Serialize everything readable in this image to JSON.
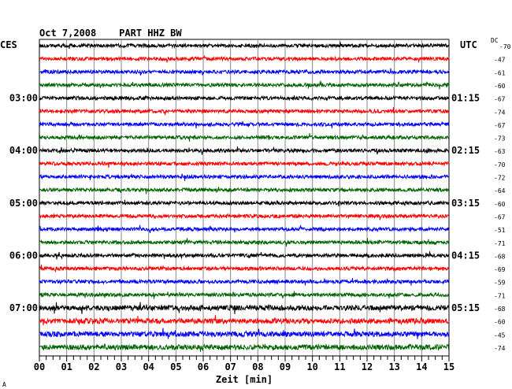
{
  "chart_data": {
    "type": "line",
    "title": "Oct 7,2008    PART HHZ BW",
    "xlabel": "Zeit [min]",
    "xlim": [
      0,
      15
    ],
    "x_ticks": [
      "00",
      "01",
      "02",
      "03",
      "04",
      "05",
      "06",
      "07",
      "08",
      "09",
      "10",
      "11",
      "12",
      "13",
      "14",
      "15"
    ],
    "left_axis_title": "CES",
    "right_axis_title": "UTC",
    "dc_label": "DC",
    "colors": [
      "#000000",
      "#ff0000",
      "#0000ff",
      "#006400"
    ],
    "rows": [
      {
        "dc": "-70",
        "left": "",
        "right": ""
      },
      {
        "dc": "-47",
        "left": "",
        "right": ""
      },
      {
        "dc": "-61",
        "left": "",
        "right": ""
      },
      {
        "dc": "-60",
        "left": "",
        "right": ""
      },
      {
        "dc": "-67",
        "left": "03:00",
        "right": "01:15"
      },
      {
        "dc": "-74",
        "left": "",
        "right": ""
      },
      {
        "dc": "-67",
        "left": "",
        "right": ""
      },
      {
        "dc": "-73",
        "left": "",
        "right": ""
      },
      {
        "dc": "-63",
        "left": "04:00",
        "right": "02:15"
      },
      {
        "dc": "-70",
        "left": "",
        "right": ""
      },
      {
        "dc": "-72",
        "left": "",
        "right": ""
      },
      {
        "dc": "-64",
        "left": "",
        "right": ""
      },
      {
        "dc": "-60",
        "left": "05:00",
        "right": "03:15"
      },
      {
        "dc": "-67",
        "left": "",
        "right": ""
      },
      {
        "dc": "-51",
        "left": "",
        "right": ""
      },
      {
        "dc": "-71",
        "left": "",
        "right": ""
      },
      {
        "dc": "-68",
        "left": "06:00",
        "right": "04:15"
      },
      {
        "dc": "-69",
        "left": "",
        "right": ""
      },
      {
        "dc": "-59",
        "left": "",
        "right": ""
      },
      {
        "dc": "-71",
        "left": "",
        "right": ""
      },
      {
        "dc": "-68",
        "left": "07:00",
        "right": "05:15"
      },
      {
        "dc": "-60",
        "left": "",
        "right": ""
      },
      {
        "dc": "-45",
        "left": "",
        "right": ""
      },
      {
        "dc": "-74",
        "left": "",
        "right": ""
      }
    ],
    "corner_mark": "A"
  }
}
